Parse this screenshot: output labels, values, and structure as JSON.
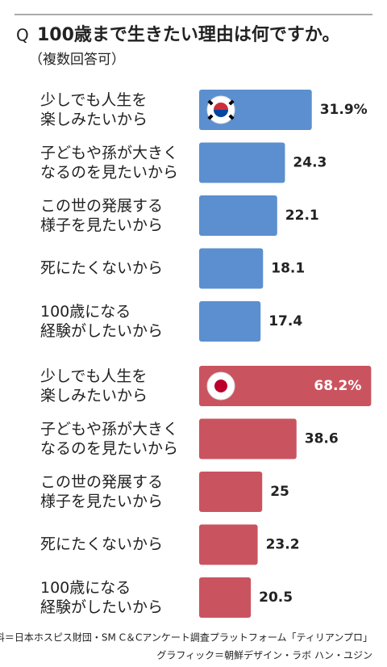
{
  "chart_data": [
    {
      "type": "bar",
      "q_label": "Q",
      "title": "100歳まで生きたい理由は何ですか。",
      "subtitle": "（複数回答可）",
      "categories": [
        "少しでも人生を\n楽しみたいから",
        "子どもや孫が大きく\nなるのを見たいから",
        "この世の発展する\n様子を見たいから",
        "死にたくないから",
        "100歳になる\n経験がしたいから"
      ],
      "values": [
        31.9,
        24.3,
        22.1,
        18.1,
        17.4
      ],
      "value_labels": [
        "31.9%",
        "24.3",
        "22.1",
        "18.1",
        "17.4"
      ],
      "color": "#5b8fcf",
      "xlim": [
        0,
        50
      ]
    },
    {
      "type": "bar",
      "categories": [
        "少しでも人生を\n楽しみたいから",
        "子どもや孫が大きく\nなるのを見たいから",
        "この世の発展する\n様子を見たいから",
        "死にたくないから",
        "100歳になる\n経験がしたいから"
      ],
      "values": [
        68.2,
        38.6,
        25,
        23.2,
        20.5
      ],
      "value_labels": [
        "68.2%",
        "38.6",
        "25",
        "23.2",
        "20.5"
      ],
      "color": "#c9545f",
      "xlim": [
        0,
        70
      ]
    }
  ],
  "source": [
    "資料＝日本ホスピス財団・SM C＆Cアンケート調査プラットフォーム「ティリアンプロ」",
    "グラフィック＝朝鮮デザイン・ラボ ハン・ユジン"
  ]
}
